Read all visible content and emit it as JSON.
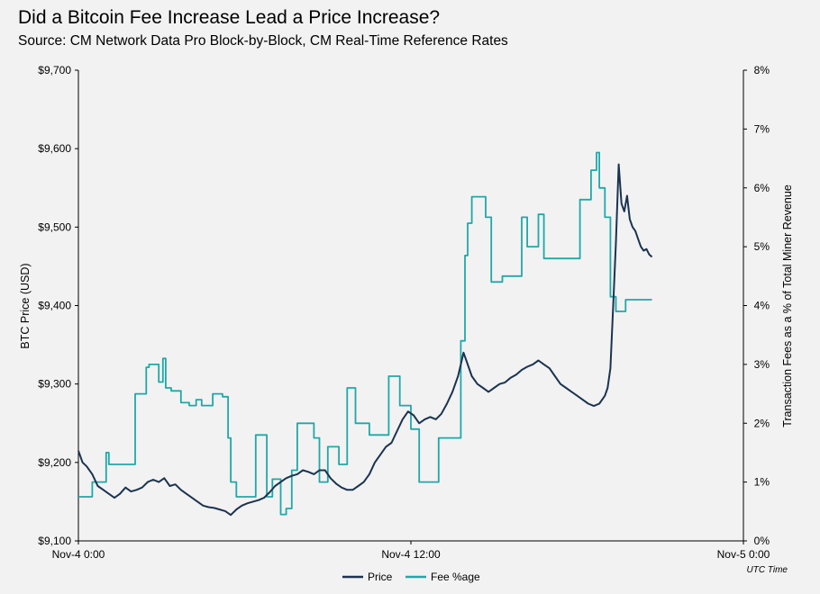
{
  "title": "Did a Bitcoin Fee Increase Lead a Price Increase?",
  "subtitle": "Source: CM Network Data Pro Block-by-Block, CM Real-Time Reference Rates",
  "chart_data": {
    "type": "line",
    "x_range_hours": [
      0,
      24
    ],
    "x_ticks": [
      {
        "hour": 0,
        "label": "Nov-4 0:00"
      },
      {
        "hour": 12,
        "label": "Nov-4 12:00"
      },
      {
        "hour": 24,
        "label": "Nov-5 0:00"
      }
    ],
    "x_note": "UTC Time",
    "y_left": {
      "label": "BTC Price (USD)",
      "range": [
        9100,
        9700
      ],
      "ticks": [
        {
          "value": 9100,
          "label": "$9,100"
        },
        {
          "value": 9200,
          "label": "$9,200"
        },
        {
          "value": 9300,
          "label": "$9,300"
        },
        {
          "value": 9400,
          "label": "$9,400"
        },
        {
          "value": 9500,
          "label": "$9,500"
        },
        {
          "value": 9600,
          "label": "$9,600"
        },
        {
          "value": 9700,
          "label": "$9,700"
        }
      ]
    },
    "y_right": {
      "label": "Transaction Fees as a % of Total Miner Revenue",
      "range": [
        0,
        8
      ],
      "ticks": [
        {
          "value": 0,
          "label": "0%"
        },
        {
          "value": 1,
          "label": "1%"
        },
        {
          "value": 2,
          "label": "2%"
        },
        {
          "value": 3,
          "label": "3%"
        },
        {
          "value": 4,
          "label": "4%"
        },
        {
          "value": 5,
          "label": "5%"
        },
        {
          "value": 6,
          "label": "6%"
        },
        {
          "value": 7,
          "label": "7%"
        },
        {
          "value": 8,
          "label": "8%"
        }
      ]
    },
    "legend": {
      "position": "bottom-center"
    },
    "series": [
      {
        "name": "Price",
        "axis": "left",
        "color": "#1b3350",
        "points": [
          [
            0.0,
            9215
          ],
          [
            0.15,
            9200
          ],
          [
            0.3,
            9195
          ],
          [
            0.5,
            9185
          ],
          [
            0.7,
            9170
          ],
          [
            0.9,
            9165
          ],
          [
            1.1,
            9160
          ],
          [
            1.3,
            9155
          ],
          [
            1.5,
            9160
          ],
          [
            1.7,
            9168
          ],
          [
            1.9,
            9163
          ],
          [
            2.1,
            9165
          ],
          [
            2.3,
            9168
          ],
          [
            2.5,
            9175
          ],
          [
            2.7,
            9178
          ],
          [
            2.9,
            9175
          ],
          [
            3.1,
            9180
          ],
          [
            3.3,
            9170
          ],
          [
            3.5,
            9172
          ],
          [
            3.7,
            9165
          ],
          [
            3.9,
            9160
          ],
          [
            4.1,
            9155
          ],
          [
            4.3,
            9150
          ],
          [
            4.5,
            9145
          ],
          [
            4.7,
            9143
          ],
          [
            4.9,
            9142
          ],
          [
            5.1,
            9140
          ],
          [
            5.3,
            9138
          ],
          [
            5.5,
            9133
          ],
          [
            5.7,
            9140
          ],
          [
            5.9,
            9145
          ],
          [
            6.1,
            9148
          ],
          [
            6.3,
            9150
          ],
          [
            6.5,
            9152
          ],
          [
            6.7,
            9155
          ],
          [
            6.9,
            9162
          ],
          [
            7.1,
            9170
          ],
          [
            7.3,
            9175
          ],
          [
            7.5,
            9180
          ],
          [
            7.7,
            9183
          ],
          [
            7.9,
            9185
          ],
          [
            8.1,
            9190
          ],
          [
            8.3,
            9188
          ],
          [
            8.5,
            9185
          ],
          [
            8.7,
            9190
          ],
          [
            8.9,
            9190
          ],
          [
            9.1,
            9180
          ],
          [
            9.3,
            9173
          ],
          [
            9.5,
            9168
          ],
          [
            9.7,
            9165
          ],
          [
            9.9,
            9165
          ],
          [
            10.1,
            9170
          ],
          [
            10.3,
            9175
          ],
          [
            10.5,
            9185
          ],
          [
            10.7,
            9200
          ],
          [
            10.9,
            9210
          ],
          [
            11.1,
            9220
          ],
          [
            11.3,
            9225
          ],
          [
            11.5,
            9240
          ],
          [
            11.7,
            9255
          ],
          [
            11.9,
            9265
          ],
          [
            12.1,
            9260
          ],
          [
            12.3,
            9250
          ],
          [
            12.5,
            9255
          ],
          [
            12.7,
            9258
          ],
          [
            12.9,
            9255
          ],
          [
            13.1,
            9262
          ],
          [
            13.3,
            9275
          ],
          [
            13.5,
            9290
          ],
          [
            13.7,
            9310
          ],
          [
            13.8,
            9325
          ],
          [
            13.9,
            9340
          ],
          [
            14.0,
            9330
          ],
          [
            14.2,
            9310
          ],
          [
            14.4,
            9300
          ],
          [
            14.6,
            9295
          ],
          [
            14.8,
            9290
          ],
          [
            15.0,
            9295
          ],
          [
            15.2,
            9300
          ],
          [
            15.4,
            9302
          ],
          [
            15.6,
            9308
          ],
          [
            15.8,
            9312
          ],
          [
            16.0,
            9318
          ],
          [
            16.2,
            9322
          ],
          [
            16.4,
            9325
          ],
          [
            16.6,
            9330
          ],
          [
            16.8,
            9325
          ],
          [
            17.0,
            9320
          ],
          [
            17.2,
            9310
          ],
          [
            17.4,
            9300
          ],
          [
            17.6,
            9295
          ],
          [
            17.8,
            9290
          ],
          [
            18.0,
            9285
          ],
          [
            18.2,
            9280
          ],
          [
            18.4,
            9275
          ],
          [
            18.6,
            9272
          ],
          [
            18.8,
            9275
          ],
          [
            19.0,
            9285
          ],
          [
            19.1,
            9295
          ],
          [
            19.2,
            9320
          ],
          [
            19.3,
            9400
          ],
          [
            19.4,
            9480
          ],
          [
            19.5,
            9580
          ],
          [
            19.6,
            9530
          ],
          [
            19.7,
            9520
          ],
          [
            19.8,
            9540
          ],
          [
            19.9,
            9510
          ],
          [
            20.0,
            9500
          ],
          [
            20.1,
            9495
          ],
          [
            20.2,
            9485
          ],
          [
            20.3,
            9475
          ],
          [
            20.4,
            9470
          ],
          [
            20.5,
            9472
          ],
          [
            20.6,
            9465
          ],
          [
            20.7,
            9462
          ]
        ]
      },
      {
        "name": "Fee %age",
        "axis": "right",
        "color": "#1fa8a8",
        "points": [
          [
            0.0,
            0.75
          ],
          [
            0.5,
            0.75
          ],
          [
            0.5,
            1.0
          ],
          [
            1.0,
            1.0
          ],
          [
            1.0,
            1.5
          ],
          [
            1.1,
            1.5
          ],
          [
            1.1,
            1.3
          ],
          [
            2.05,
            1.3
          ],
          [
            2.05,
            2.5
          ],
          [
            2.45,
            2.5
          ],
          [
            2.45,
            2.95
          ],
          [
            2.55,
            2.95
          ],
          [
            2.55,
            3.0
          ],
          [
            2.9,
            3.0
          ],
          [
            2.9,
            2.7
          ],
          [
            3.05,
            2.7
          ],
          [
            3.05,
            3.1
          ],
          [
            3.15,
            3.1
          ],
          [
            3.15,
            2.6
          ],
          [
            3.35,
            2.6
          ],
          [
            3.35,
            2.55
          ],
          [
            3.7,
            2.55
          ],
          [
            3.7,
            2.35
          ],
          [
            4.0,
            2.35
          ],
          [
            4.0,
            2.3
          ],
          [
            4.25,
            2.3
          ],
          [
            4.25,
            2.4
          ],
          [
            4.45,
            2.4
          ],
          [
            4.45,
            2.3
          ],
          [
            4.85,
            2.3
          ],
          [
            4.85,
            2.5
          ],
          [
            5.2,
            2.5
          ],
          [
            5.2,
            2.45
          ],
          [
            5.4,
            2.45
          ],
          [
            5.4,
            1.75
          ],
          [
            5.5,
            1.75
          ],
          [
            5.5,
            1.0
          ],
          [
            5.7,
            1.0
          ],
          [
            5.7,
            0.75
          ],
          [
            6.4,
            0.75
          ],
          [
            6.4,
            1.8
          ],
          [
            6.8,
            1.8
          ],
          [
            6.8,
            0.75
          ],
          [
            7.0,
            0.75
          ],
          [
            7.0,
            1.05
          ],
          [
            7.3,
            1.05
          ],
          [
            7.3,
            0.45
          ],
          [
            7.5,
            0.45
          ],
          [
            7.5,
            0.55
          ],
          [
            7.7,
            0.55
          ],
          [
            7.7,
            1.2
          ],
          [
            7.9,
            1.2
          ],
          [
            7.9,
            2.0
          ],
          [
            8.5,
            2.0
          ],
          [
            8.5,
            1.75
          ],
          [
            8.7,
            1.75
          ],
          [
            8.7,
            1.0
          ],
          [
            9.0,
            1.0
          ],
          [
            9.0,
            1.6
          ],
          [
            9.4,
            1.6
          ],
          [
            9.4,
            1.3
          ],
          [
            9.7,
            1.3
          ],
          [
            9.7,
            2.6
          ],
          [
            10.0,
            2.6
          ],
          [
            10.0,
            2.0
          ],
          [
            10.5,
            2.0
          ],
          [
            10.5,
            1.8
          ],
          [
            11.2,
            1.8
          ],
          [
            11.2,
            2.8
          ],
          [
            11.6,
            2.8
          ],
          [
            11.6,
            2.3
          ],
          [
            12.0,
            2.3
          ],
          [
            12.0,
            1.9
          ],
          [
            12.3,
            1.9
          ],
          [
            12.3,
            1.0
          ],
          [
            13.0,
            1.0
          ],
          [
            13.0,
            1.75
          ],
          [
            13.8,
            1.75
          ],
          [
            13.8,
            3.4
          ],
          [
            13.95,
            3.4
          ],
          [
            13.95,
            4.85
          ],
          [
            14.05,
            4.85
          ],
          [
            14.05,
            5.4
          ],
          [
            14.2,
            5.4
          ],
          [
            14.2,
            5.85
          ],
          [
            14.7,
            5.85
          ],
          [
            14.7,
            5.5
          ],
          [
            14.9,
            5.5
          ],
          [
            14.9,
            4.4
          ],
          [
            15.3,
            4.4
          ],
          [
            15.3,
            4.5
          ],
          [
            16.0,
            4.5
          ],
          [
            16.0,
            5.5
          ],
          [
            16.2,
            5.5
          ],
          [
            16.2,
            5.0
          ],
          [
            16.6,
            5.0
          ],
          [
            16.6,
            5.55
          ],
          [
            16.8,
            5.55
          ],
          [
            16.8,
            4.8
          ],
          [
            18.1,
            4.8
          ],
          [
            18.1,
            5.8
          ],
          [
            18.5,
            5.8
          ],
          [
            18.5,
            6.3
          ],
          [
            18.7,
            6.3
          ],
          [
            18.7,
            6.6
          ],
          [
            18.8,
            6.6
          ],
          [
            18.8,
            6.0
          ],
          [
            19.0,
            6.0
          ],
          [
            19.0,
            5.5
          ],
          [
            19.2,
            5.5
          ],
          [
            19.2,
            4.15
          ],
          [
            19.4,
            4.15
          ],
          [
            19.4,
            3.9
          ],
          [
            19.75,
            3.9
          ],
          [
            19.75,
            4.1
          ],
          [
            20.7,
            4.1
          ]
        ]
      }
    ]
  }
}
